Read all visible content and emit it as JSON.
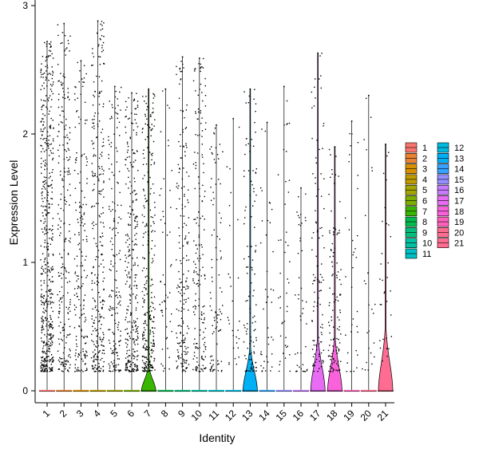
{
  "chart_data": {
    "type": "violin",
    "xlabel": "Identity",
    "ylabel": "Expression Level",
    "ylim": [
      -0.1,
      3.0
    ],
    "yticks": [
      0,
      1,
      2,
      3
    ],
    "categories": [
      "1",
      "2",
      "3",
      "4",
      "5",
      "6",
      "7",
      "8",
      "9",
      "10",
      "11",
      "12",
      "13",
      "14",
      "15",
      "16",
      "17",
      "18",
      "19",
      "20",
      "21"
    ],
    "colors": [
      "#F8766D",
      "#EA8331",
      "#D89000",
      "#C09B00",
      "#A3A500",
      "#7CAE00",
      "#39B600",
      "#00BB4E",
      "#00BF7D",
      "#00C1A3",
      "#00BFC4",
      "#00BAE0",
      "#00B0F6",
      "#35A2FF",
      "#9590FF",
      "#C77CFF",
      "#E76BF3",
      "#FA62DB",
      "#FF62BC",
      "#FF6C91",
      "#FF6C91"
    ],
    "violins": [
      {
        "group": "1",
        "max": 2.72,
        "bulge": 0.0,
        "pointDensity": 1.0
      },
      {
        "group": "2",
        "max": 2.86,
        "bulge": 0.0,
        "pointDensity": 0.45
      },
      {
        "group": "3",
        "max": 2.57,
        "bulge": 0.0,
        "pointDensity": 0.35
      },
      {
        "group": "4",
        "max": 2.88,
        "bulge": 0.0,
        "pointDensity": 0.55
      },
      {
        "group": "5",
        "max": 2.37,
        "bulge": 0.0,
        "pointDensity": 0.35
      },
      {
        "group": "6",
        "max": 2.32,
        "bulge": 0.0,
        "pointDensity": 0.55
      },
      {
        "group": "7",
        "max": 2.35,
        "bulge": 0.25,
        "pointDensity": 0.55
      },
      {
        "group": "8",
        "max": 2.35,
        "bulge": 0.0,
        "pointDensity": 0.1
      },
      {
        "group": "9",
        "max": 2.6,
        "bulge": 0.0,
        "pointDensity": 0.35
      },
      {
        "group": "10",
        "max": 2.59,
        "bulge": 0.0,
        "pointDensity": 0.35
      },
      {
        "group": "11",
        "max": 2.07,
        "bulge": 0.0,
        "pointDensity": 0.18
      },
      {
        "group": "12",
        "max": 2.12,
        "bulge": 0.0,
        "pointDensity": 0.05
      },
      {
        "group": "13",
        "max": 2.35,
        "bulge": 0.45,
        "pointDensity": 0.22
      },
      {
        "group": "14",
        "max": 2.09,
        "bulge": 0.0,
        "pointDensity": 0.08
      },
      {
        "group": "15",
        "max": 2.37,
        "bulge": 0.0,
        "pointDensity": 0.08
      },
      {
        "group": "16",
        "max": 1.58,
        "bulge": 0.0,
        "pointDensity": 0.08
      },
      {
        "group": "17",
        "max": 2.63,
        "bulge": 0.55,
        "pointDensity": 0.2
      },
      {
        "group": "18",
        "max": 1.9,
        "bulge": 0.55,
        "pointDensity": 0.22
      },
      {
        "group": "19",
        "max": 2.1,
        "bulge": 0.0,
        "pointDensity": 0.06
      },
      {
        "group": "20",
        "max": 2.3,
        "bulge": 0.0,
        "pointDensity": 0.05
      },
      {
        "group": "21",
        "max": 1.92,
        "bulge": 0.65,
        "pointDensity": 0.06
      }
    ],
    "legend": {
      "position": "right",
      "columns": [
        [
          "1",
          "2",
          "3",
          "4",
          "5",
          "6",
          "7",
          "8",
          "9",
          "10",
          "11"
        ],
        [
          "12",
          "13",
          "14",
          "15",
          "16",
          "17",
          "18",
          "19",
          "20",
          "21"
        ]
      ]
    },
    "grid": false
  }
}
